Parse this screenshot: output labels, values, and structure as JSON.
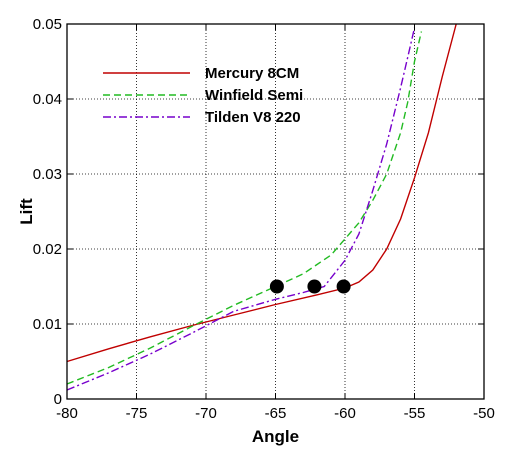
{
  "chart_data": {
    "type": "line",
    "title": "",
    "xlabel": "Angle",
    "ylabel": "Lift",
    "xlim": [
      -80,
      -50
    ],
    "ylim": [
      0,
      0.05
    ],
    "xticks": [
      -80,
      -75,
      -70,
      -65,
      -60,
      -55,
      -50
    ],
    "yticks": [
      0,
      0.01,
      0.02,
      0.03,
      0.04,
      0.05
    ],
    "xtick_labels": [
      "-80",
      "-75",
      "-70",
      "-65",
      "-60",
      "-55",
      "-50"
    ],
    "ytick_labels": [
      "0",
      "0.01",
      "0.02",
      "0.03",
      "0.04",
      "0.05"
    ],
    "grid": "dotted",
    "legend_position": "top-left",
    "series": [
      {
        "name": "Mercury 8CM",
        "color": "#c00000",
        "style": "solid",
        "x": [
          -80,
          -77,
          -74,
          -71,
          -68,
          -65,
          -62,
          -60,
          -59,
          -58,
          -57,
          -56,
          -55,
          -54,
          -53,
          -52
        ],
        "y": [
          0.005,
          0.0067,
          0.0083,
          0.0098,
          0.0112,
          0.0126,
          0.0139,
          0.0148,
          0.0156,
          0.0172,
          0.02,
          0.024,
          0.0295,
          0.0355,
          0.043,
          0.05
        ]
      },
      {
        "name": "Winfield Semi",
        "color": "#22bb22",
        "style": "dashed",
        "x": [
          -80,
          -77,
          -74,
          -71,
          -68,
          -65,
          -63,
          -61,
          -59,
          -58,
          -57,
          -56,
          -55.5,
          -55,
          -54.5
        ],
        "y": [
          0.002,
          0.0042,
          0.0068,
          0.0097,
          0.0125,
          0.015,
          0.0167,
          0.0192,
          0.0235,
          0.0265,
          0.03,
          0.0355,
          0.0395,
          0.045,
          0.049
        ]
      },
      {
        "name": "Tilden V8 220",
        "color": "#7700cc",
        "style": "dashdot",
        "x": [
          -80,
          -77,
          -74,
          -71,
          -68,
          -65,
          -63,
          -61.5,
          -60,
          -59,
          -58,
          -57,
          -56,
          -55.5,
          -55
        ],
        "y": [
          0.0012,
          0.0035,
          0.006,
          0.0088,
          0.0117,
          0.0133,
          0.0142,
          0.015,
          0.0185,
          0.022,
          0.0278,
          0.034,
          0.0415,
          0.0455,
          0.0495
        ]
      }
    ],
    "markers": [
      {
        "x": -64.9,
        "y": 0.015
      },
      {
        "x": -62.2,
        "y": 0.015
      },
      {
        "x": -60.1,
        "y": 0.015
      }
    ]
  }
}
